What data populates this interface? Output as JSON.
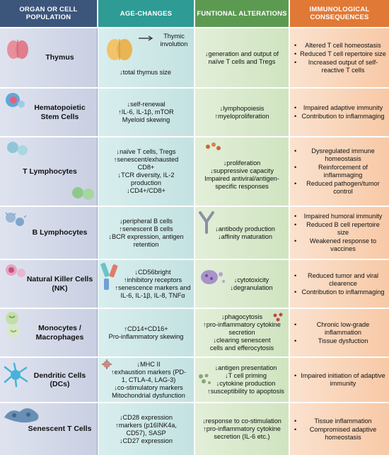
{
  "headers": [
    "ORGAN OR CELL\nPOPULATION",
    "AGE-CHANGES",
    "FUNTIONAL ALTERATIONS",
    "IMMUNOLOGICAL\nCONSEQUENCES"
  ],
  "rows": [
    {
      "organ": "Thymus",
      "age_changes": [
        "Thymic",
        "involution",
        "↓total thymus size"
      ],
      "functional": [
        "↓generation and output of",
        "naïve T cells and Tregs"
      ],
      "consequences": [
        "Altered T cell homeostasis",
        "Reduced T cell repertoire size",
        "Increased output of self-reactive T cells"
      ]
    },
    {
      "organ": "Hematopoietic Stem Cells",
      "age_changes": [
        "↓self-renewal",
        "↑IL-6, IL-1β, mTOR",
        "Myeloid skewing"
      ],
      "functional": [
        "↓lymphopoiesis",
        "↑myeloproliferation"
      ],
      "consequences": [
        "Impaired adaptive immunity",
        "Contribution to inflammaging"
      ]
    },
    {
      "organ": "T Lymphocytes",
      "age_changes": [
        "↓naïve T cells, Tregs",
        "↑senescent/exhausted",
        "CD8+",
        "↓TCR diversity, IL-2",
        "production",
        "↓CD4+/CD8+"
      ],
      "functional": [
        "↓proliferation",
        "↓suppressive capacity",
        "Impaired antiviral/antigen-",
        "specific responses"
      ],
      "consequences": [
        "Dysregulated immune homeostasis",
        "Reinforcement of inflammaging",
        "Reduced pathogen/tumor control"
      ]
    },
    {
      "organ": "B Lymphocytes",
      "age_changes": [
        "↓peripheral B cells",
        "↑senescent B cells",
        "↓BCR expression, antigen",
        "retention"
      ],
      "functional": [
        "↓antibody production",
        "↓affinity maturation"
      ],
      "consequences": [
        "Impaired humoral immunity",
        "Reduced B cell repertoire size",
        "Weakened response to vaccines"
      ]
    },
    {
      "organ": "Natural Killer Cells (NK)",
      "age_changes": [
        "↓CD56bright",
        "↑inhibitory receptors",
        "↑senescence markers and",
        "IL-6, IL-1β, IL-8, TNFα"
      ],
      "functional": [
        "↓cytotoxicity",
        "↓degranulation"
      ],
      "consequences": [
        "Reduced tumor and viral clearence",
        "Contribution to inflammaging"
      ]
    },
    {
      "organ": "Monocytes / Macrophages",
      "age_changes": [
        "↑CD14+CD16+",
        "Pro-inflammatory skewing"
      ],
      "functional": [
        "↓phagocytosis",
        "↑pro-inflammatory cytokine",
        "secretion",
        "↓clearing senescent",
        "cells and efferocytosis"
      ],
      "consequences": [
        "Chronic low-grade inflammation",
        "Tissue dysfuction"
      ]
    },
    {
      "organ": "Dendritic Cells (DCs)",
      "age_changes": [
        "↓MHC II",
        "↑exhaustion markers (PD-",
        "1, CTLA-4, LAG-3)",
        "↓co-stimulatory markers",
        "Mitochondrial dysfunction"
      ],
      "functional": [
        "↓antigen presentation",
        "↓T cell priming",
        "↓cytokine production",
        "↑susceptibility to apoptosis"
      ],
      "consequences": [
        "Impaired initiation of adaptive immunity"
      ]
    },
    {
      "organ": "Senescent T Cells",
      "age_changes": [
        "↓CD28 expression",
        "↑markers (p16INK4a,",
        "CD57), SASP",
        "↓CD27 expression"
      ],
      "functional": [
        "↓response to co-stimulation",
        "↑pro-inflammatory cytokine",
        "secretion (IL-6 etc.)"
      ],
      "consequences": [
        "Tissue inflammation",
        "Compromised adaptive homeostasis"
      ]
    }
  ],
  "colors": {
    "organ_header": "#3c567b",
    "age_header": "#2e9b95",
    "functional_header": "#5c9a52",
    "consequence_header": "#e17936"
  }
}
